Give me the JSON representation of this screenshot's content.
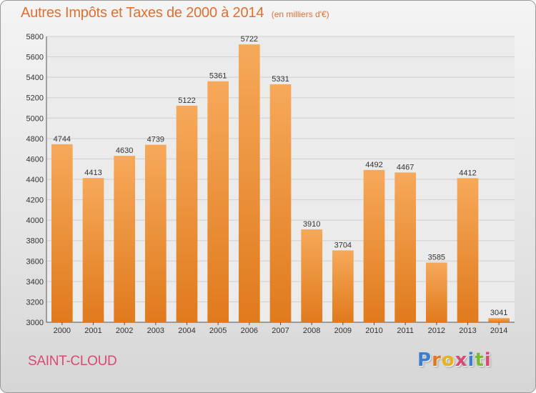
{
  "header": {
    "title": "Autres Impôts et Taxes de 2000 à 2014",
    "subtitle": "(en milliers d'€)"
  },
  "footer": {
    "city": "SAINT-CLOUD",
    "logo_text": "Proxiti"
  },
  "colors": {
    "bar_top": "#f6a95a",
    "bar_bottom": "#e07a1d",
    "title": "#e06f30",
    "city": "#d94a73",
    "logo_letters": [
      "#3b7fd1",
      "#e07a1d",
      "#e8b21c",
      "#d94a73",
      "#3b7fd1",
      "#7cb82f",
      "#d94a73"
    ]
  },
  "chart_data": {
    "type": "bar",
    "categories": [
      "2000",
      "2001",
      "2002",
      "2003",
      "2004",
      "2005",
      "2006",
      "2007",
      "2008",
      "2009",
      "2010",
      "2011",
      "2012",
      "2013",
      "2014"
    ],
    "values": [
      4744,
      4413,
      4630,
      4739,
      5122,
      5361,
      5722,
      5331,
      3910,
      3704,
      4492,
      4467,
      3585,
      4412,
      3041
    ],
    "ylim": [
      3000,
      5800
    ],
    "yticks": [
      3000,
      3200,
      3400,
      3600,
      3800,
      4000,
      4200,
      4400,
      4600,
      4800,
      5000,
      5200,
      5400,
      5600,
      5800
    ],
    "grid": true,
    "data_labels": true
  }
}
